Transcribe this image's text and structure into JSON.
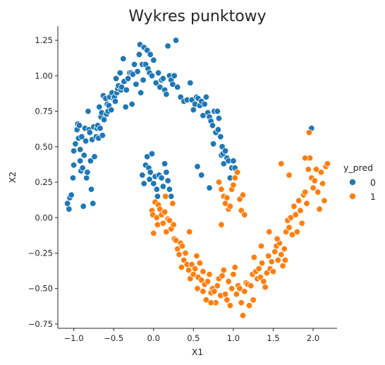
{
  "chart_data": {
    "type": "scatter",
    "title": "Wykres punktowy",
    "xlabel": "X1",
    "ylabel": "X2",
    "xlim": [
      -1.2,
      2.3
    ],
    "ylim": [
      -0.78,
      1.35
    ],
    "xticks": [
      -1.0,
      -0.5,
      0.0,
      0.5,
      1.0,
      1.5,
      2.0
    ],
    "xtick_labels": [
      "−1.0",
      "−0.5",
      "0.0",
      "0.5",
      "1.0",
      "1.5",
      "2.0"
    ],
    "yticks": [
      -0.75,
      -0.5,
      -0.25,
      0.0,
      0.25,
      0.5,
      0.75,
      1.0,
      1.25
    ],
    "ytick_labels": [
      "−0.75",
      "−0.50",
      "−0.25",
      "0.00",
      "0.25",
      "0.50",
      "0.75",
      "1.00",
      "1.25"
    ],
    "grid": false,
    "legend": {
      "title": "y_pred",
      "placement": "right",
      "entries": [
        "0",
        "1"
      ]
    },
    "series": [
      {
        "name": "0",
        "color": "#1f77b4",
        "points": [
          [
            -1.08,
            0.1
          ],
          [
            -1.06,
            0.06
          ],
          [
            -1.05,
            0.14
          ],
          [
            -1.03,
            0.16
          ],
          [
            -1.01,
            0.28
          ],
          [
            -1.0,
            0.37
          ],
          [
            -1.0,
            0.47
          ],
          [
            -0.98,
            0.52
          ],
          [
            -0.96,
            0.62
          ],
          [
            -0.95,
            0.66
          ],
          [
            -0.94,
            0.56
          ],
          [
            -0.93,
            0.65
          ],
          [
            -0.92,
            0.4
          ],
          [
            -0.92,
            0.48
          ],
          [
            -0.91,
            0.33
          ],
          [
            -0.9,
            0.57
          ],
          [
            -0.89,
            0.35
          ],
          [
            -0.88,
            0.08
          ],
          [
            -0.87,
            0.44
          ],
          [
            -0.86,
            0.63
          ],
          [
            -0.85,
            0.54
          ],
          [
            -0.84,
            0.28
          ],
          [
            -0.83,
            0.32
          ],
          [
            -0.82,
            0.75
          ],
          [
            -0.81,
            0.62
          ],
          [
            -0.8,
            0.6
          ],
          [
            -0.79,
            0.4
          ],
          [
            -0.78,
            0.2
          ],
          [
            -0.77,
            0.55
          ],
          [
            -0.76,
            0.1
          ],
          [
            -0.75,
            0.64
          ],
          [
            -0.74,
            0.43
          ],
          [
            -0.72,
            0.57
          ],
          [
            -0.71,
            0.63
          ],
          [
            -0.7,
            0.65
          ],
          [
            -0.69,
            0.56
          ],
          [
            -0.68,
            0.78
          ],
          [
            -0.67,
            0.63
          ],
          [
            -0.66,
            0.71
          ],
          [
            -0.65,
            0.74
          ],
          [
            -0.64,
            0.58
          ],
          [
            -0.63,
            0.86
          ],
          [
            -0.62,
            0.69
          ],
          [
            -0.6,
            0.84
          ],
          [
            -0.59,
            0.73
          ],
          [
            -0.58,
            0.8
          ],
          [
            -0.57,
            0.75
          ],
          [
            -0.56,
            0.79
          ],
          [
            -0.55,
            0.85
          ],
          [
            -0.53,
            0.76
          ],
          [
            -0.52,
            0.88
          ],
          [
            -0.5,
            0.84
          ],
          [
            -0.49,
            0.85
          ],
          [
            -0.48,
            0.82
          ],
          [
            -0.47,
            0.98
          ],
          [
            -0.46,
            0.88
          ],
          [
            -0.45,
            0.91
          ],
          [
            -0.44,
            0.93
          ],
          [
            -0.42,
            1.02
          ],
          [
            -0.41,
            0.9
          ],
          [
            -0.4,
            0.92
          ],
          [
            -0.38,
            1.12
          ],
          [
            -0.37,
            0.96
          ],
          [
            -0.35,
            0.78
          ],
          [
            -0.34,
            0.9
          ],
          [
            -0.32,
            0.98
          ],
          [
            -0.3,
            1.02
          ],
          [
            -0.28,
            1.02
          ],
          [
            -0.27,
            0.8
          ],
          [
            -0.26,
            1.01
          ],
          [
            -0.24,
            1.08
          ],
          [
            -0.22,
            0.94
          ],
          [
            -0.2,
            1.03
          ],
          [
            -0.18,
            1.15
          ],
          [
            -0.17,
            1.22
          ],
          [
            -0.16,
            0.88
          ],
          [
            -0.14,
            1.08
          ],
          [
            -0.13,
            0.97
          ],
          [
            -0.12,
            1.2
          ],
          [
            -0.1,
            1.08
          ],
          [
            -0.08,
            1.18
          ],
          [
            -0.07,
            1.05
          ],
          [
            -0.05,
            1.02
          ],
          [
            -0.04,
            1.15
          ],
          [
            -0.02,
            1.0
          ],
          [
            0.0,
            1.11
          ],
          [
            0.03,
            0.95
          ],
          [
            0.06,
            1.02
          ],
          [
            0.08,
            0.92
          ],
          [
            0.1,
            0.97
          ],
          [
            0.12,
            0.98
          ],
          [
            0.14,
            0.9
          ],
          [
            0.16,
            0.87
          ],
          [
            0.18,
            1.21
          ],
          [
            0.2,
            1.0
          ],
          [
            0.22,
            0.97
          ],
          [
            0.24,
            0.94
          ],
          [
            0.26,
            1.0
          ],
          [
            0.28,
            1.25
          ],
          [
            0.3,
            0.92
          ],
          [
            0.34,
            0.85
          ],
          [
            0.38,
            0.82
          ],
          [
            0.42,
            0.83
          ],
          [
            0.46,
            0.95
          ],
          [
            0.48,
            0.83
          ],
          [
            0.5,
            0.76
          ],
          [
            0.52,
            0.8
          ],
          [
            0.54,
            0.85
          ],
          [
            0.56,
            0.84
          ],
          [
            0.58,
            0.79
          ],
          [
            0.6,
            0.82
          ],
          [
            0.62,
            0.72
          ],
          [
            0.64,
            0.8
          ],
          [
            0.66,
            0.85
          ],
          [
            0.68,
            0.74
          ],
          [
            0.7,
            0.71
          ],
          [
            0.72,
            0.68
          ],
          [
            0.74,
            0.65
          ],
          [
            0.75,
            0.52
          ],
          [
            0.76,
            0.75
          ],
          [
            0.78,
            0.6
          ],
          [
            0.8,
            0.75
          ],
          [
            0.81,
            0.62
          ],
          [
            0.82,
            0.7
          ],
          [
            0.84,
            0.57
          ],
          [
            0.85,
            0.44
          ],
          [
            0.86,
            0.5
          ],
          [
            0.87,
            0.45
          ],
          [
            0.88,
            0.38
          ],
          [
            0.9,
            0.47
          ],
          [
            0.92,
            0.42
          ],
          [
            0.94,
            0.4
          ],
          [
            0.96,
            0.28
          ],
          [
            0.98,
            0.35
          ],
          [
            1.0,
            0.4
          ],
          [
            1.02,
            0.35
          ],
          [
            -0.14,
            0.3
          ],
          [
            -0.12,
            0.24
          ],
          [
            -0.1,
            0.37
          ],
          [
            -0.08,
            0.43
          ],
          [
            -0.06,
            0.35
          ],
          [
            -0.05,
            0.27
          ],
          [
            -0.04,
            0.32
          ],
          [
            -0.02,
            0.45
          ],
          [
            0.0,
            0.24
          ],
          [
            0.02,
            0.29
          ],
          [
            0.04,
            0.2
          ],
          [
            0.05,
            0.15
          ],
          [
            0.07,
            0.3
          ],
          [
            0.1,
            0.28
          ],
          [
            0.12,
            0.22
          ],
          [
            0.14,
            0.38
          ],
          [
            0.16,
            0.32
          ],
          [
            0.18,
            0.26
          ],
          [
            0.2,
            0.2
          ],
          [
            0.22,
            0.15
          ],
          [
            0.7,
            0.21
          ],
          [
            0.55,
            0.36
          ],
          [
            0.6,
            0.3
          ],
          [
            1.98,
            0.63
          ]
        ]
      },
      {
        "name": "1",
        "color": "#ff7f0e",
        "points": [
          [
            -0.02,
            0.05
          ],
          [
            -0.01,
            0.02
          ],
          [
            0.0,
            -0.11
          ],
          [
            0.02,
            0.11
          ],
          [
            0.04,
            0.0
          ],
          [
            0.05,
            -0.05
          ],
          [
            0.06,
            0.09
          ],
          [
            0.08,
            0.06
          ],
          [
            0.1,
            0.02
          ],
          [
            0.12,
            -0.04
          ],
          [
            0.14,
            0.04
          ],
          [
            0.16,
            -0.1
          ],
          [
            0.18,
            -0.01
          ],
          [
            0.2,
            -0.02
          ],
          [
            0.22,
            -0.08
          ],
          [
            0.24,
            0.1
          ],
          [
            0.26,
            -0.15
          ],
          [
            0.28,
            -0.16
          ],
          [
            0.3,
            -0.22
          ],
          [
            0.32,
            -0.26
          ],
          [
            0.34,
            -0.18
          ],
          [
            0.36,
            -0.2
          ],
          [
            0.38,
            -0.3
          ],
          [
            0.4,
            -0.25
          ],
          [
            0.42,
            -0.33
          ],
          [
            0.44,
            -0.37
          ],
          [
            0.46,
            -0.43
          ],
          [
            0.48,
            -0.33
          ],
          [
            0.5,
            -0.4
          ],
          [
            0.52,
            -0.36
          ],
          [
            0.54,
            -0.27
          ],
          [
            0.56,
            -0.42
          ],
          [
            0.58,
            -0.32
          ],
          [
            0.6,
            -0.44
          ],
          [
            0.62,
            -0.38
          ],
          [
            0.64,
            -0.47
          ],
          [
            0.66,
            -0.58
          ],
          [
            0.68,
            -0.45
          ],
          [
            0.7,
            -0.4
          ],
          [
            0.72,
            -0.53
          ],
          [
            0.74,
            -0.5
          ],
          [
            0.76,
            -0.52
          ],
          [
            0.78,
            -0.6
          ],
          [
            0.8,
            -0.48
          ],
          [
            0.82,
            -0.43
          ],
          [
            0.84,
            -0.55
          ],
          [
            0.86,
            -0.41
          ],
          [
            0.88,
            -0.37
          ],
          [
            0.9,
            -0.54
          ],
          [
            0.92,
            -0.58
          ],
          [
            0.94,
            -0.45
          ],
          [
            0.96,
            -0.62
          ],
          [
            0.98,
            -0.5
          ],
          [
            1.0,
            -0.4
          ],
          [
            1.02,
            -0.35
          ],
          [
            1.04,
            -0.54
          ],
          [
            1.06,
            -0.48
          ],
          [
            1.08,
            -0.5
          ],
          [
            1.1,
            -0.6
          ],
          [
            1.12,
            -0.69
          ],
          [
            1.14,
            -0.52
          ],
          [
            1.16,
            -0.46
          ],
          [
            1.18,
            -0.47
          ],
          [
            1.2,
            -0.62
          ],
          [
            1.22,
            -0.48
          ],
          [
            1.24,
            -0.4
          ],
          [
            1.26,
            -0.28
          ],
          [
            1.28,
            -0.38
          ],
          [
            1.3,
            -0.43
          ],
          [
            1.32,
            -0.36
          ],
          [
            1.34,
            -0.42
          ],
          [
            1.36,
            -0.32
          ],
          [
            1.38,
            -0.45
          ],
          [
            1.4,
            -0.49
          ],
          [
            1.42,
            -0.39
          ],
          [
            1.44,
            -0.27
          ],
          [
            1.46,
            -0.36
          ],
          [
            1.48,
            -0.31
          ],
          [
            1.5,
            -0.38
          ],
          [
            1.52,
            -0.24
          ],
          [
            1.54,
            -0.2
          ],
          [
            1.56,
            -0.3
          ],
          [
            1.58,
            -0.18
          ],
          [
            1.6,
            -0.26
          ],
          [
            1.62,
            -0.34
          ],
          [
            1.64,
            -0.22
          ],
          [
            1.66,
            -0.1
          ],
          [
            1.68,
            -0.02
          ],
          [
            1.7,
            -0.07
          ],
          [
            1.72,
            0.0
          ],
          [
            1.74,
            -0.12
          ],
          [
            1.76,
            0.08
          ],
          [
            1.78,
            0.02
          ],
          [
            1.8,
            -0.1
          ],
          [
            1.82,
            0.12
          ],
          [
            1.84,
            0.05
          ],
          [
            1.86,
            -0.04
          ],
          [
            1.88,
            0.16
          ],
          [
            1.9,
            0.18
          ],
          [
            1.92,
            0.1
          ],
          [
            1.94,
            0.34
          ],
          [
            1.96,
            0.42
          ],
          [
            1.98,
            0.28
          ],
          [
            2.0,
            0.21
          ],
          [
            2.02,
            0.26
          ],
          [
            2.04,
            0.34
          ],
          [
            2.06,
            0.18
          ],
          [
            2.08,
            0.06
          ],
          [
            2.1,
            0.32
          ],
          [
            2.12,
            0.24
          ],
          [
            2.14,
            0.12
          ],
          [
            2.16,
            0.36
          ],
          [
            2.18,
            0.38
          ],
          [
            1.9,
            0.42
          ],
          [
            1.95,
            0.6
          ],
          [
            1.6,
            0.38
          ],
          [
            1.7,
            0.3
          ],
          [
            0.82,
            0.25
          ],
          [
            0.85,
            0.2
          ],
          [
            0.88,
            0.15
          ],
          [
            0.9,
            0.1
          ],
          [
            0.92,
            0.14
          ],
          [
            0.94,
            0.06
          ],
          [
            0.96,
            0.08
          ],
          [
            0.98,
            0.2
          ],
          [
            1.0,
            0.23
          ],
          [
            1.02,
            0.28
          ],
          [
            1.05,
            0.32
          ],
          [
            1.08,
            0.13
          ],
          [
            1.1,
            0.05
          ],
          [
            1.12,
            0.16
          ],
          [
            1.14,
            0.02
          ],
          [
            0.85,
            -0.05
          ],
          [
            0.45,
            -0.1
          ],
          [
            0.35,
            -0.35
          ],
          [
            0.55,
            -0.5
          ],
          [
            0.62,
            -0.52
          ],
          [
            0.72,
            -0.6
          ],
          [
            1.25,
            -0.58
          ],
          [
            1.35,
            -0.2
          ],
          [
            1.45,
            -0.1
          ],
          [
            1.55,
            -0.15
          ],
          [
            1.65,
            -0.3
          ],
          [
            0.15,
            0.15
          ],
          [
            0.25,
            -0.05
          ]
        ]
      }
    ]
  }
}
